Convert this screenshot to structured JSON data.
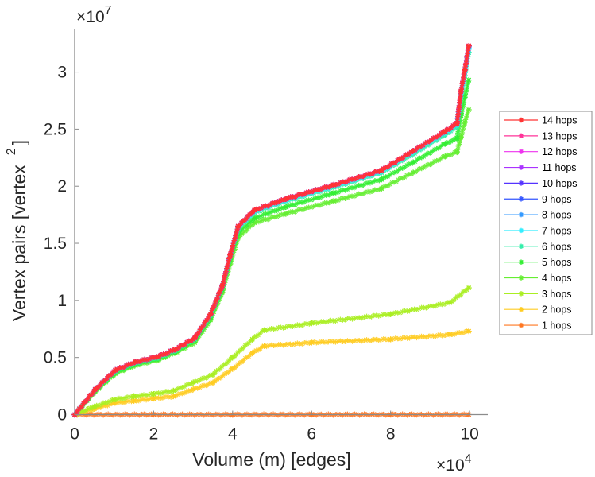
{
  "chart_data": {
    "type": "line",
    "title": "",
    "xlabel": "Volume (m) [edges]",
    "ylabel_main": "Vertex pairs [vertex",
    "ylabel_sup": "2",
    "ylabel_close": "]",
    "x_multiplier": "×10",
    "x_multiplier_exp": "4",
    "y_multiplier": "×10",
    "y_multiplier_exp": "7",
    "xlim": [
      0,
      10.46
    ],
    "ylim": [
      0,
      3.38
    ],
    "xticks": [
      0,
      2,
      4,
      6,
      8,
      10
    ],
    "xtick_labels": [
      "0",
      "2",
      "4",
      "6",
      "8",
      "10"
    ],
    "yticks": [
      0,
      0.5,
      1,
      1.5,
      2,
      2.5,
      3
    ],
    "ytick_labels": [
      "0",
      "0.5",
      "1",
      "1.5",
      "2",
      "2.5",
      "3"
    ],
    "grid": false,
    "legend_position": "right",
    "marker": "asterisk",
    "series": [
      {
        "name": "14 hops",
        "color": "#ff3333",
        "x": [
          0,
          0.52,
          1.03,
          1.53,
          2.13,
          2.54,
          3.04,
          3.44,
          3.74,
          3.94,
          4.14,
          4.55,
          5.35,
          6.56,
          7.77,
          8.57,
          9.38,
          9.68,
          9.78,
          9.88,
          9.98
        ],
        "y": [
          0,
          0.22,
          0.39,
          0.46,
          0.51,
          0.57,
          0.67,
          0.88,
          1.13,
          1.4,
          1.65,
          1.79,
          1.89,
          2.01,
          2.14,
          2.31,
          2.48,
          2.55,
          2.83,
          3.02,
          3.23
        ]
      },
      {
        "name": "13 hops",
        "color": "#ff3399",
        "x": [
          0,
          0.52,
          1.03,
          1.53,
          2.13,
          2.54,
          3.04,
          3.44,
          3.74,
          3.94,
          4.14,
          4.55,
          5.35,
          6.56,
          7.77,
          8.57,
          9.38,
          9.68,
          9.78,
          9.88,
          9.98
        ],
        "y": [
          0,
          0.22,
          0.39,
          0.46,
          0.51,
          0.57,
          0.67,
          0.88,
          1.13,
          1.4,
          1.65,
          1.79,
          1.89,
          2.01,
          2.14,
          2.31,
          2.48,
          2.55,
          2.83,
          3.02,
          3.23
        ]
      },
      {
        "name": "12 hops",
        "color": "#ee33ee",
        "x": [
          0,
          0.52,
          1.03,
          1.53,
          2.13,
          2.54,
          3.04,
          3.44,
          3.74,
          3.94,
          4.14,
          4.55,
          5.35,
          6.56,
          7.77,
          8.57,
          9.38,
          9.68,
          9.78,
          9.88,
          9.98
        ],
        "y": [
          0,
          0.22,
          0.39,
          0.46,
          0.51,
          0.57,
          0.67,
          0.88,
          1.13,
          1.4,
          1.65,
          1.79,
          1.89,
          2.01,
          2.14,
          2.31,
          2.48,
          2.55,
          2.83,
          3.02,
          3.23
        ]
      },
      {
        "name": "11 hops",
        "color": "#aa33ff",
        "x": [
          0,
          0.52,
          1.03,
          1.53,
          2.13,
          2.54,
          3.04,
          3.44,
          3.74,
          3.94,
          4.14,
          4.55,
          5.35,
          6.56,
          7.77,
          8.57,
          9.38,
          9.68,
          9.78,
          9.88,
          9.98
        ],
        "y": [
          0,
          0.22,
          0.39,
          0.46,
          0.51,
          0.57,
          0.67,
          0.88,
          1.13,
          1.4,
          1.65,
          1.79,
          1.89,
          2.01,
          2.14,
          2.31,
          2.48,
          2.55,
          2.83,
          3.02,
          3.23
        ]
      },
      {
        "name": "10 hops",
        "color": "#5533ff",
        "x": [
          0,
          0.52,
          1.03,
          1.53,
          2.13,
          2.54,
          3.04,
          3.44,
          3.74,
          3.94,
          4.14,
          4.55,
          5.35,
          6.56,
          7.77,
          8.57,
          9.38,
          9.68,
          9.78,
          9.88,
          9.98
        ],
        "y": [
          0,
          0.22,
          0.39,
          0.46,
          0.51,
          0.57,
          0.67,
          0.88,
          1.13,
          1.4,
          1.65,
          1.79,
          1.89,
          2.01,
          2.14,
          2.31,
          2.48,
          2.55,
          2.83,
          3.02,
          3.23
        ]
      },
      {
        "name": "9 hops",
        "color": "#3355ff",
        "x": [
          0,
          0.52,
          1.03,
          1.53,
          2.13,
          2.54,
          3.04,
          3.44,
          3.74,
          3.94,
          4.14,
          4.55,
          5.35,
          6.56,
          7.77,
          8.57,
          9.38,
          9.68,
          9.78,
          9.88,
          9.98
        ],
        "y": [
          0,
          0.22,
          0.39,
          0.46,
          0.51,
          0.57,
          0.67,
          0.88,
          1.13,
          1.4,
          1.65,
          1.79,
          1.89,
          2.01,
          2.14,
          2.31,
          2.48,
          2.55,
          2.83,
          3.02,
          3.23
        ]
      },
      {
        "name": "8 hops",
        "color": "#3399ff",
        "x": [
          0,
          0.52,
          1.03,
          1.53,
          2.13,
          2.54,
          3.04,
          3.44,
          3.74,
          3.94,
          4.14,
          4.55,
          5.35,
          6.56,
          7.77,
          8.57,
          9.38,
          9.68,
          9.78,
          9.88,
          9.98
        ],
        "y": [
          0,
          0.22,
          0.39,
          0.46,
          0.51,
          0.57,
          0.67,
          0.88,
          1.13,
          1.4,
          1.65,
          1.79,
          1.89,
          2.01,
          2.14,
          2.31,
          2.48,
          2.55,
          2.83,
          3.02,
          3.22
        ]
      },
      {
        "name": "7 hops",
        "color": "#33eeff",
        "x": [
          0,
          0.52,
          1.03,
          1.53,
          2.13,
          2.54,
          3.04,
          3.44,
          3.74,
          3.94,
          4.14,
          4.55,
          5.35,
          6.56,
          7.77,
          8.57,
          9.38,
          9.68,
          9.78,
          9.88,
          9.98
        ],
        "y": [
          0,
          0.22,
          0.39,
          0.46,
          0.51,
          0.57,
          0.67,
          0.88,
          1.13,
          1.4,
          1.64,
          1.78,
          1.88,
          2.0,
          2.13,
          2.3,
          2.47,
          2.54,
          2.81,
          3.0,
          3.2
        ]
      },
      {
        "name": "6 hops",
        "color": "#33eeaa",
        "x": [
          0,
          0.52,
          1.03,
          1.53,
          2.13,
          2.54,
          3.04,
          3.44,
          3.74,
          3.94,
          4.14,
          4.55,
          5.35,
          6.56,
          7.77,
          8.57,
          9.38,
          9.68,
          9.78,
          9.88,
          9.98
        ],
        "y": [
          0,
          0.22,
          0.38,
          0.45,
          0.5,
          0.56,
          0.66,
          0.87,
          1.12,
          1.39,
          1.63,
          1.77,
          1.87,
          1.99,
          2.12,
          2.28,
          2.45,
          2.52,
          2.78,
          2.97,
          3.17
        ]
      },
      {
        "name": "5 hops",
        "color": "#33ee33",
        "x": [
          0,
          0.52,
          1.03,
          1.53,
          2.13,
          2.54,
          3.04,
          3.44,
          3.74,
          3.94,
          4.14,
          4.55,
          5.35,
          6.56,
          7.77,
          8.57,
          9.38,
          9.68,
          9.78,
          9.88,
          9.98
        ],
        "y": [
          0,
          0.21,
          0.37,
          0.44,
          0.49,
          0.55,
          0.65,
          0.85,
          1.1,
          1.36,
          1.59,
          1.72,
          1.82,
          1.94,
          2.06,
          2.21,
          2.37,
          2.42,
          2.62,
          2.78,
          2.93
        ]
      },
      {
        "name": "4 hops",
        "color": "#66ee33",
        "x": [
          0,
          0.52,
          1.03,
          1.53,
          2.13,
          2.54,
          3.04,
          3.44,
          3.74,
          3.94,
          4.14,
          4.55,
          5.35,
          6.56,
          7.77,
          8.57,
          9.38,
          9.68,
          9.78,
          9.88,
          9.98
        ],
        "y": [
          0,
          0.2,
          0.36,
          0.43,
          0.48,
          0.54,
          0.63,
          0.83,
          1.07,
          1.32,
          1.55,
          1.68,
          1.76,
          1.87,
          1.98,
          2.12,
          2.26,
          2.3,
          2.43,
          2.56,
          2.67
        ]
      },
      {
        "name": "3 hops",
        "color": "#aaee22",
        "x": [
          0,
          0.5,
          1,
          1.5,
          2,
          2.5,
          3,
          3.5,
          4,
          4.5,
          4.8,
          6,
          8,
          9.5,
          9.98
        ],
        "y": [
          0,
          0.07,
          0.13,
          0.16,
          0.18,
          0.21,
          0.28,
          0.35,
          0.5,
          0.66,
          0.74,
          0.8,
          0.88,
          0.98,
          1.11
        ]
      },
      {
        "name": "2 hops",
        "color": "#ffcc22",
        "x": [
          0,
          0.5,
          1,
          1.5,
          2,
          2.5,
          3,
          3.5,
          4,
          4.5,
          4.8,
          6,
          8,
          9.5,
          9.98
        ],
        "y": [
          0,
          0.05,
          0.1,
          0.12,
          0.14,
          0.16,
          0.22,
          0.28,
          0.4,
          0.54,
          0.6,
          0.63,
          0.66,
          0.7,
          0.73
        ]
      },
      {
        "name": "1 hops",
        "color": "#ff7722",
        "x": [
          0,
          2,
          4,
          6,
          8,
          9.98
        ],
        "y": [
          0,
          0,
          0,
          0,
          0,
          0
        ]
      }
    ]
  }
}
